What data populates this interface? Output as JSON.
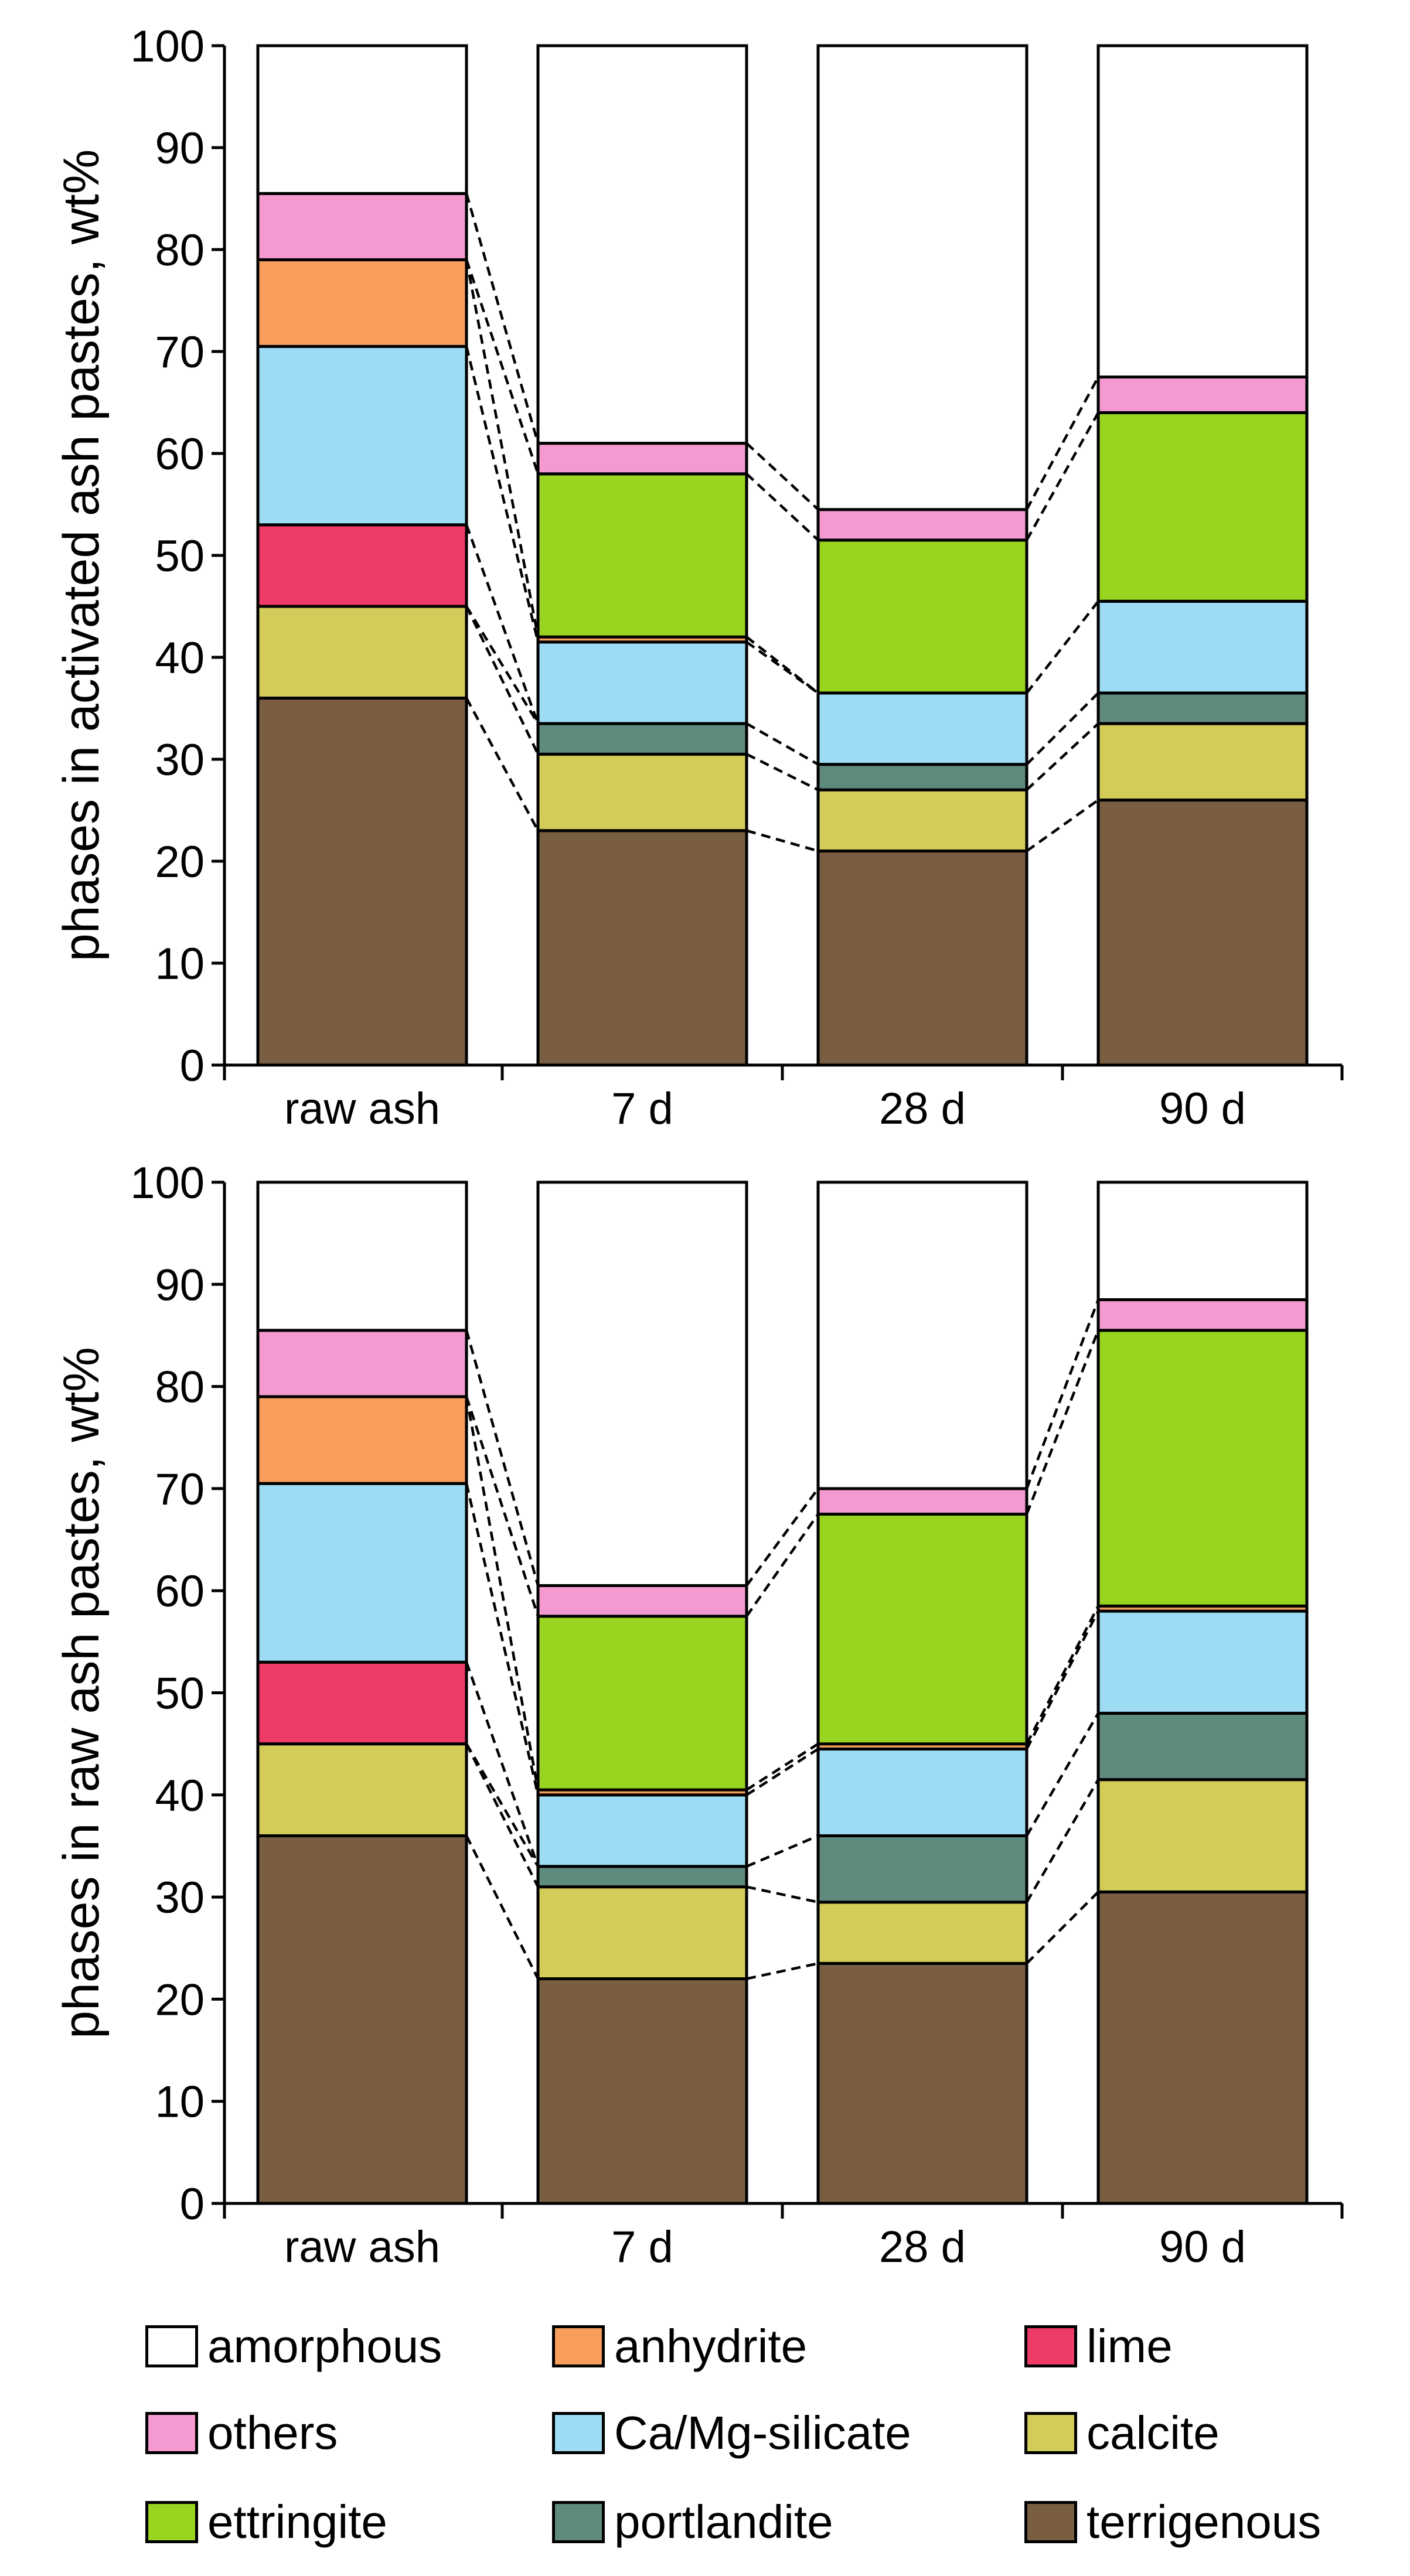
{
  "chart_data": [
    {
      "type": "bar",
      "stacked": true,
      "ylabel": "phases in activated ash pastes, wt%",
      "xlabel": "",
      "ylim": [
        0,
        100
      ],
      "yticks": [
        "0",
        "10",
        "20",
        "30",
        "40",
        "50",
        "60",
        "70",
        "80",
        "90",
        "100"
      ],
      "categories": [
        "raw ash",
        "7 d",
        "28 d",
        "90 d"
      ],
      "connectors": "dashed",
      "series": [
        {
          "name": "terrigenous",
          "values": [
            36,
            23,
            21,
            26
          ]
        },
        {
          "name": "calcite",
          "values": [
            9,
            7.5,
            6,
            7.5
          ]
        },
        {
          "name": "portlandite",
          "values": [
            0,
            3,
            2.5,
            3
          ]
        },
        {
          "name": "lime",
          "values": [
            8,
            0,
            0,
            0
          ]
        },
        {
          "name": "Ca/Mg-silicate",
          "values": [
            17.5,
            8,
            7,
            9
          ]
        },
        {
          "name": "anhydrite",
          "values": [
            8.5,
            0.5,
            0,
            0
          ]
        },
        {
          "name": "ettringite",
          "values": [
            0,
            16,
            15,
            18.5
          ]
        },
        {
          "name": "others",
          "values": [
            6.5,
            3,
            3,
            3.5
          ]
        },
        {
          "name": "amorphous",
          "values": [
            14.5,
            39,
            45.5,
            32.5
          ]
        }
      ]
    },
    {
      "type": "bar",
      "stacked": true,
      "ylabel": "phases in raw ash pastes, wt%",
      "xlabel": "",
      "ylim": [
        0,
        100
      ],
      "yticks": [
        "0",
        "10",
        "20",
        "30",
        "40",
        "50",
        "60",
        "70",
        "80",
        "90",
        "100"
      ],
      "categories": [
        "raw ash",
        "7 d",
        "28 d",
        "90 d"
      ],
      "connectors": "dashed",
      "series": [
        {
          "name": "terrigenous",
          "values": [
            36,
            22,
            23.5,
            30.5
          ]
        },
        {
          "name": "calcite",
          "values": [
            9,
            9,
            6,
            11
          ]
        },
        {
          "name": "portlandite",
          "values": [
            0,
            2,
            6.5,
            6.5
          ]
        },
        {
          "name": "lime",
          "values": [
            8,
            0,
            0,
            0
          ]
        },
        {
          "name": "Ca/Mg-silicate",
          "values": [
            17.5,
            7,
            8.5,
            10
          ]
        },
        {
          "name": "anhydrite",
          "values": [
            8.5,
            0.5,
            0.5,
            0.5
          ]
        },
        {
          "name": "ettringite",
          "values": [
            0,
            17,
            22.5,
            27
          ]
        },
        {
          "name": "others",
          "values": [
            6.5,
            3,
            2.5,
            3
          ]
        },
        {
          "name": "amorphous",
          "values": [
            14.5,
            39.5,
            30,
            11.5
          ]
        }
      ]
    }
  ],
  "colors": {
    "amorphous": "#ffffff",
    "others": "#f49ad0",
    "ettringite": "#99d420",
    "anhydrite": "#f79e5c",
    "Ca/Mg-silicate": "#9edcf5",
    "portlandite": "#5f8a7e",
    "lime": "#ee3b68",
    "calcite": "#d3cc58",
    "terrigenous": "#7a5e42"
  },
  "legend": [
    {
      "key": "amorphous",
      "label": "amorphous"
    },
    {
      "key": "anhydrite",
      "label": "anhydrite"
    },
    {
      "key": "lime",
      "label": "lime"
    },
    {
      "key": "others",
      "label": "others"
    },
    {
      "key": "Ca/Mg-silicate",
      "label": "Ca/Mg-silicate"
    },
    {
      "key": "calcite",
      "label": "calcite"
    },
    {
      "key": "ettringite",
      "label": "ettringite"
    },
    {
      "key": "portlandite",
      "label": "portlandite"
    },
    {
      "key": "terrigenous",
      "label": "terrigenous"
    }
  ]
}
